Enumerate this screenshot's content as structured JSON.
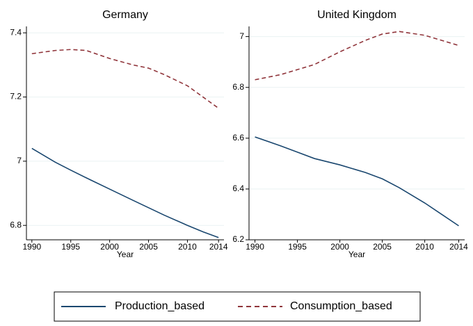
{
  "chart_data": [
    {
      "type": "line",
      "title": "Germany",
      "x_label": "Year",
      "x": [
        1990,
        1993,
        1995,
        1997,
        2000,
        2003,
        2005,
        2007,
        2010,
        2012,
        2014
      ],
      "series": [
        {
          "name": "Production_based",
          "color": "#1a476f",
          "dash": "solid",
          "values": [
            7.04,
            6.997,
            6.972,
            6.948,
            6.913,
            6.878,
            6.855,
            6.832,
            6.8,
            6.78,
            6.762
          ]
        },
        {
          "name": "Consumption_based",
          "color": "#90353b",
          "dash": "dashed",
          "values": [
            7.335,
            7.345,
            7.348,
            7.345,
            7.32,
            7.3,
            7.29,
            7.27,
            7.235,
            7.2,
            7.165
          ]
        }
      ],
      "xlim": [
        1989.3,
        2014.7
      ],
      "xticks": [
        1990,
        1995,
        2000,
        2005,
        2010,
        2014
      ],
      "ylim": [
        6.755,
        7.42
      ],
      "yticks": [
        6.8,
        7,
        7.2,
        7.4
      ],
      "grid": true
    },
    {
      "type": "line",
      "title": "United Kingdom",
      "x_label": "Year",
      "x": [
        1990,
        1993,
        1995,
        1997,
        2000,
        2003,
        2005,
        2007,
        2010,
        2012,
        2014
      ],
      "series": [
        {
          "name": "Production_based",
          "color": "#1a476f",
          "dash": "solid",
          "values": [
            6.605,
            6.57,
            6.545,
            6.52,
            6.495,
            6.465,
            6.44,
            6.405,
            6.345,
            6.3,
            6.255
          ]
        },
        {
          "name": "Consumption_based",
          "color": "#90353b",
          "dash": "dashed",
          "values": [
            6.83,
            6.85,
            6.87,
            6.89,
            6.94,
            6.985,
            7.01,
            7.02,
            7.005,
            6.985,
            6.965
          ]
        }
      ],
      "xlim": [
        1989.3,
        2014.7
      ],
      "xticks": [
        1990,
        1995,
        2000,
        2005,
        2010,
        2014
      ],
      "ylim": [
        6.2,
        7.04
      ],
      "yticks": [
        6.2,
        6.4,
        6.6,
        6.8,
        7
      ],
      "grid": true
    }
  ]
}
